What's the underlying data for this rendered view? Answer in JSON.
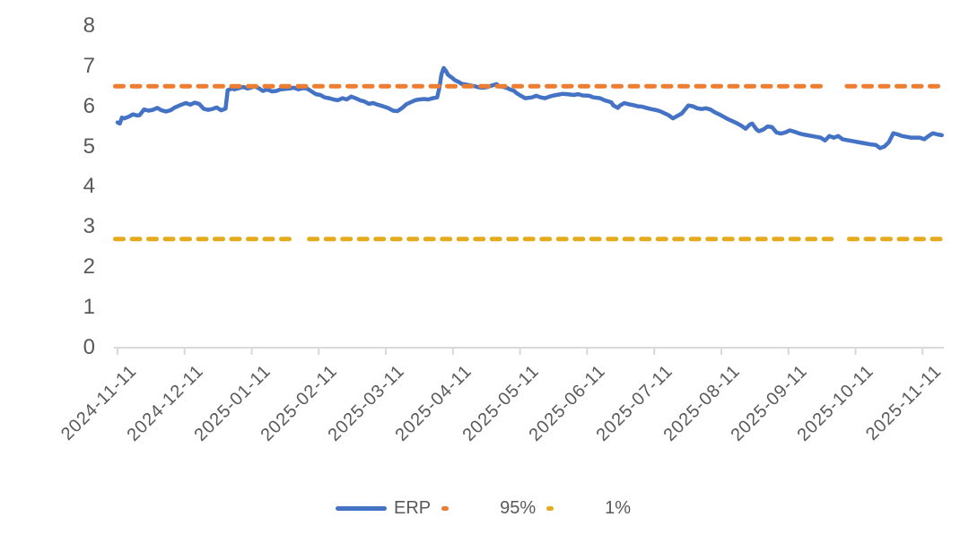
{
  "page": {
    "background": "#FFFFFF"
  },
  "chart_data": {
    "type": "line",
    "title": "",
    "grid": false,
    "colors": {
      "erp_line": "#4472C4",
      "p95_line": "#ED7D31",
      "p1_line": "#E4AC1C",
      "axis": "#D9D9D9",
      "text": "#595959"
    },
    "x_axis": {
      "first_tick_date": "2024-11-11",
      "tick_interval": "1 month",
      "label_rotation_deg": 45,
      "tick_labels": [
        "2024-11-11",
        "2024-12-11",
        "2025-01-11",
        "2025-02-11",
        "2025-03-11",
        "2025-04-11",
        "2025-05-11",
        "2025-06-11",
        "2025-07-11",
        "2025-08-11",
        "2025-09-11",
        "2025-10-11",
        "2025-11-11"
      ],
      "x_unit": "days since 2024-11-11",
      "range_days": [
        -1,
        375
      ]
    },
    "y_axis": {
      "tick_labels": [
        "0",
        "1",
        "2",
        "3",
        "4",
        "5",
        "6",
        "7",
        "8"
      ],
      "range": [
        0,
        8
      ]
    },
    "legend": {
      "position": "bottom",
      "entries": [
        {
          "id": "erp",
          "label": "ERP",
          "style": "solid-line",
          "color": "#4472C4"
        },
        {
          "id": "p95",
          "label": "95%",
          "style": "dash-marker",
          "color": "#ED7D31"
        },
        {
          "id": "p1",
          "label": "1%",
          "style": "dash-marker",
          "color": "#E4AC1C"
        }
      ]
    },
    "series": [
      {
        "id": "erp",
        "name": "ERP",
        "type": "line",
        "color": "#4472C4",
        "x_unit": "days since 2024-11-11",
        "points": [
          [
            0,
            5.6
          ],
          [
            1,
            5.57
          ],
          [
            2,
            5.72
          ],
          [
            3,
            5.7
          ],
          [
            5,
            5.74
          ],
          [
            7,
            5.8
          ],
          [
            9,
            5.77
          ],
          [
            10,
            5.78
          ],
          [
            12,
            5.92
          ],
          [
            14,
            5.89
          ],
          [
            16,
            5.91
          ],
          [
            18,
            5.96
          ],
          [
            20,
            5.9
          ],
          [
            22,
            5.87
          ],
          [
            24,
            5.9
          ],
          [
            26,
            5.97
          ],
          [
            29,
            6.04
          ],
          [
            31,
            6.08
          ],
          [
            33,
            6.04
          ],
          [
            35,
            6.09
          ],
          [
            37,
            6.06
          ],
          [
            39,
            5.94
          ],
          [
            41,
            5.91
          ],
          [
            43,
            5.93
          ],
          [
            45,
            5.97
          ],
          [
            47,
            5.9
          ],
          [
            49,
            5.94
          ],
          [
            50,
            6.4
          ],
          [
            52,
            6.44
          ],
          [
            53,
            6.42
          ],
          [
            55,
            6.45
          ],
          [
            57,
            6.48
          ],
          [
            59,
            6.44
          ],
          [
            61,
            6.47
          ],
          [
            62,
            6.5
          ],
          [
            64,
            6.45
          ],
          [
            66,
            6.38
          ],
          [
            68,
            6.42
          ],
          [
            70,
            6.37
          ],
          [
            72,
            6.38
          ],
          [
            74,
            6.42
          ],
          [
            76,
            6.43
          ],
          [
            78,
            6.44
          ],
          [
            80,
            6.46
          ],
          [
            82,
            6.42
          ],
          [
            84,
            6.45
          ],
          [
            86,
            6.44
          ],
          [
            88,
            6.37
          ],
          [
            90,
            6.3
          ],
          [
            92,
            6.28
          ],
          [
            94,
            6.22
          ],
          [
            96,
            6.2
          ],
          [
            98,
            6.17
          ],
          [
            100,
            6.15
          ],
          [
            102,
            6.2
          ],
          [
            104,
            6.17
          ],
          [
            106,
            6.24
          ],
          [
            108,
            6.2
          ],
          [
            110,
            6.15
          ],
          [
            112,
            6.12
          ],
          [
            114,
            6.06
          ],
          [
            116,
            6.08
          ],
          [
            118,
            6.04
          ],
          [
            120,
            6.01
          ],
          [
            123,
            5.95
          ],
          [
            125,
            5.89
          ],
          [
            127,
            5.88
          ],
          [
            129,
            5.95
          ],
          [
            131,
            6.05
          ],
          [
            133,
            6.1
          ],
          [
            135,
            6.15
          ],
          [
            137,
            6.17
          ],
          [
            139,
            6.18
          ],
          [
            141,
            6.17
          ],
          [
            143,
            6.2
          ],
          [
            145,
            6.22
          ],
          [
            146,
            6.45
          ],
          [
            147,
            6.8
          ],
          [
            148,
            6.95
          ],
          [
            149,
            6.88
          ],
          [
            150,
            6.78
          ],
          [
            152,
            6.7
          ],
          [
            153,
            6.65
          ],
          [
            155,
            6.6
          ],
          [
            156,
            6.56
          ],
          [
            158,
            6.54
          ],
          [
            160,
            6.52
          ],
          [
            162,
            6.5
          ],
          [
            164,
            6.47
          ],
          [
            166,
            6.46
          ],
          [
            168,
            6.48
          ],
          [
            170,
            6.52
          ],
          [
            172,
            6.55
          ],
          [
            173,
            6.5
          ],
          [
            175,
            6.48
          ],
          [
            177,
            6.45
          ],
          [
            178,
            6.42
          ],
          [
            180,
            6.38
          ],
          [
            181,
            6.33
          ],
          [
            183,
            6.26
          ],
          [
            185,
            6.2
          ],
          [
            188,
            6.22
          ],
          [
            190,
            6.26
          ],
          [
            192,
            6.22
          ],
          [
            194,
            6.2
          ],
          [
            196,
            6.24
          ],
          [
            198,
            6.27
          ],
          [
            200,
            6.29
          ],
          [
            202,
            6.31
          ],
          [
            204,
            6.3
          ],
          [
            207,
            6.28
          ],
          [
            209,
            6.3
          ],
          [
            211,
            6.27
          ],
          [
            214,
            6.26
          ],
          [
            216,
            6.22
          ],
          [
            219,
            6.2
          ],
          [
            221,
            6.15
          ],
          [
            224,
            6.1
          ],
          [
            225,
            6.02
          ],
          [
            227,
            5.96
          ],
          [
            228,
            6.02
          ],
          [
            230,
            6.08
          ],
          [
            232,
            6.05
          ],
          [
            234,
            6.03
          ],
          [
            236,
            6.0
          ],
          [
            238,
            5.99
          ],
          [
            240,
            5.96
          ],
          [
            242,
            5.93
          ],
          [
            244,
            5.91
          ],
          [
            246,
            5.88
          ],
          [
            248,
            5.83
          ],
          [
            250,
            5.78
          ],
          [
            252,
            5.7
          ],
          [
            254,
            5.76
          ],
          [
            256,
            5.82
          ],
          [
            258,
            5.95
          ],
          [
            259,
            6.02
          ],
          [
            261,
            6.0
          ],
          [
            263,
            5.95
          ],
          [
            265,
            5.93
          ],
          [
            267,
            5.95
          ],
          [
            269,
            5.92
          ],
          [
            271,
            5.85
          ],
          [
            273,
            5.8
          ],
          [
            275,
            5.74
          ],
          [
            277,
            5.68
          ],
          [
            279,
            5.63
          ],
          [
            281,
            5.58
          ],
          [
            283,
            5.52
          ],
          [
            285,
            5.44
          ],
          [
            287,
            5.55
          ],
          [
            288,
            5.57
          ],
          [
            290,
            5.42
          ],
          [
            291,
            5.38
          ],
          [
            293,
            5.42
          ],
          [
            295,
            5.5
          ],
          [
            297,
            5.48
          ],
          [
            299,
            5.35
          ],
          [
            301,
            5.32
          ],
          [
            303,
            5.35
          ],
          [
            305,
            5.4
          ],
          [
            307,
            5.37
          ],
          [
            309,
            5.33
          ],
          [
            311,
            5.3
          ],
          [
            313,
            5.28
          ],
          [
            315,
            5.26
          ],
          [
            317,
            5.24
          ],
          [
            319,
            5.22
          ],
          [
            321,
            5.15
          ],
          [
            323,
            5.26
          ],
          [
            325,
            5.22
          ],
          [
            327,
            5.26
          ],
          [
            329,
            5.18
          ],
          [
            332,
            5.15
          ],
          [
            334,
            5.13
          ],
          [
            336,
            5.11
          ],
          [
            338,
            5.09
          ],
          [
            340,
            5.07
          ],
          [
            342,
            5.05
          ],
          [
            344,
            5.04
          ],
          [
            346,
            4.96
          ],
          [
            348,
            5.0
          ],
          [
            350,
            5.11
          ],
          [
            352,
            5.33
          ],
          [
            354,
            5.3
          ],
          [
            356,
            5.26
          ],
          [
            358,
            5.24
          ],
          [
            360,
            5.22
          ],
          [
            362,
            5.22
          ],
          [
            364,
            5.22
          ],
          [
            366,
            5.18
          ],
          [
            368,
            5.26
          ],
          [
            370,
            5.33
          ],
          [
            372,
            5.3
          ],
          [
            374,
            5.28
          ]
        ]
      },
      {
        "id": "p95",
        "name": "95%",
        "type": "horizontal-dashed-line",
        "color": "#ED7D31",
        "value": 6.5,
        "segments": [
          [
            -1,
            319
          ],
          [
            331,
            375
          ]
        ]
      },
      {
        "id": "p1",
        "name": "1%",
        "type": "horizontal-dashed-line",
        "color": "#E4AC1C",
        "value": 2.7,
        "segments": [
          [
            -1,
            78
          ],
          [
            87,
            324
          ],
          [
            332,
            375
          ]
        ]
      }
    ]
  }
}
